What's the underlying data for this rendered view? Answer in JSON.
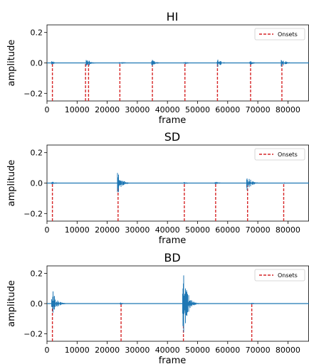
{
  "colors": {
    "signal": "#1f77b4",
    "onset": "#d62728",
    "frame": "#000000"
  },
  "chart_data": [
    {
      "type": "line",
      "title": "HI",
      "xlabel": "frame",
      "ylabel": "amplitude",
      "xlim": [
        0,
        87000
      ],
      "ylim": [
        -0.25,
        0.25
      ],
      "xticks": [
        0,
        10000,
        20000,
        30000,
        40000,
        50000,
        60000,
        70000,
        80000
      ],
      "yticks": [
        -0.2,
        0.0,
        0.2
      ],
      "ytick_labels": [
        "−0.2",
        "0.0",
        "0.2"
      ],
      "legend": {
        "label": "Onsets",
        "position": "top-right"
      },
      "onsets": [
        1800,
        12800,
        13800,
        24200,
        35000,
        45800,
        56600,
        67600,
        78000
      ],
      "bursts": [
        {
          "frame": 1800,
          "amplitude": 0.012
        },
        {
          "frame": 13300,
          "amplitude": 0.03
        },
        {
          "frame": 24200,
          "amplitude": 0.015
        },
        {
          "frame": 35000,
          "amplitude": 0.02
        },
        {
          "frame": 45800,
          "amplitude": 0.01
        },
        {
          "frame": 56600,
          "amplitude": 0.032
        },
        {
          "frame": 67600,
          "amplitude": 0.012
        },
        {
          "frame": 78000,
          "amplitude": 0.03
        }
      ]
    },
    {
      "type": "line",
      "title": "SD",
      "xlabel": "frame",
      "ylabel": "amplitude",
      "xlim": [
        0,
        87000
      ],
      "ylim": [
        -0.25,
        0.25
      ],
      "xticks": [
        0,
        10000,
        20000,
        30000,
        40000,
        50000,
        60000,
        70000,
        80000
      ],
      "yticks": [
        -0.2,
        0.0,
        0.2
      ],
      "ytick_labels": [
        "−0.2",
        "0.0",
        "0.2"
      ],
      "legend": {
        "label": "Onsets",
        "position": "top-right"
      },
      "onsets": [
        1800,
        23600,
        45600,
        56000,
        66600,
        78600
      ],
      "bursts": [
        {
          "frame": 1800,
          "amplitude": 0.01
        },
        {
          "frame": 23600,
          "amplitude": 0.07
        },
        {
          "frame": 45600,
          "amplitude": 0.008
        },
        {
          "frame": 56000,
          "amplitude": 0.01
        },
        {
          "frame": 66600,
          "amplitude": 0.055
        },
        {
          "frame": 78600,
          "amplitude": 0.006
        }
      ]
    },
    {
      "type": "line",
      "title": "BD",
      "xlabel": "frame",
      "ylabel": "amplitude",
      "xlim": [
        0,
        87000
      ],
      "ylim": [
        -0.25,
        0.25
      ],
      "xticks": [
        0,
        10000,
        20000,
        30000,
        40000,
        50000,
        60000,
        70000,
        80000
      ],
      "yticks": [
        -0.2,
        0.0,
        0.2
      ],
      "ytick_labels": [
        "−0.2",
        "0.0",
        "0.2"
      ],
      "legend": {
        "label": "Onsets",
        "position": "top-right"
      },
      "onsets": [
        1800,
        24600,
        45300,
        68000
      ],
      "bursts": [
        {
          "frame": 1800,
          "amplitude": 0.1
        },
        {
          "frame": 24600,
          "amplitude": 0.008
        },
        {
          "frame": 45300,
          "amplitude": 0.25
        },
        {
          "frame": 68000,
          "amplitude": 0.006
        }
      ]
    }
  ]
}
